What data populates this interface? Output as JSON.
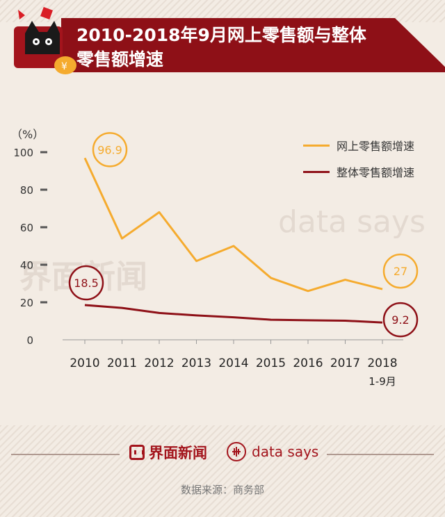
{
  "header": {
    "title_line1": "2010-2018年9月网上零售额与整体",
    "title_line2": "零售额增速"
  },
  "watermarks": {
    "left": "界面新闻",
    "right": "data says"
  },
  "footer": {
    "brand1": "界面新闻",
    "brand2": "data says",
    "source": "数据来源：商务部"
  },
  "colors": {
    "online": "#f5ab2e",
    "overall": "#8e1017",
    "banner": "#8e1017"
  },
  "chart_data": {
    "type": "line",
    "unit_label": "（%）",
    "categories": [
      "2010",
      "2011",
      "2012",
      "2013",
      "2014",
      "2015",
      "2016",
      "2017",
      "2018"
    ],
    "category_sublabels": [
      "",
      "",
      "",
      "",
      "",
      "",
      "",
      "",
      "1-9月"
    ],
    "yticks": [
      0,
      20,
      40,
      60,
      80,
      100
    ],
    "ylim": [
      0,
      100
    ],
    "grid": false,
    "legend_position": "top-right",
    "series": [
      {
        "name": "网上零售额增速",
        "color": "#f5ab2e",
        "values": [
          96.9,
          54,
          68,
          42,
          50,
          33,
          26,
          32,
          27
        ],
        "labels": [
          {
            "index": 0,
            "text": "96.9"
          },
          {
            "index": 8,
            "text": "27"
          }
        ]
      },
      {
        "name": "整体零售额增速",
        "color": "#8e1017",
        "values": [
          18.5,
          17,
          14.3,
          13,
          12,
          10.7,
          10.4,
          10.2,
          9.2
        ],
        "labels": [
          {
            "index": 0,
            "text": "18.5"
          },
          {
            "index": 8,
            "text": "9.2"
          }
        ]
      }
    ]
  }
}
